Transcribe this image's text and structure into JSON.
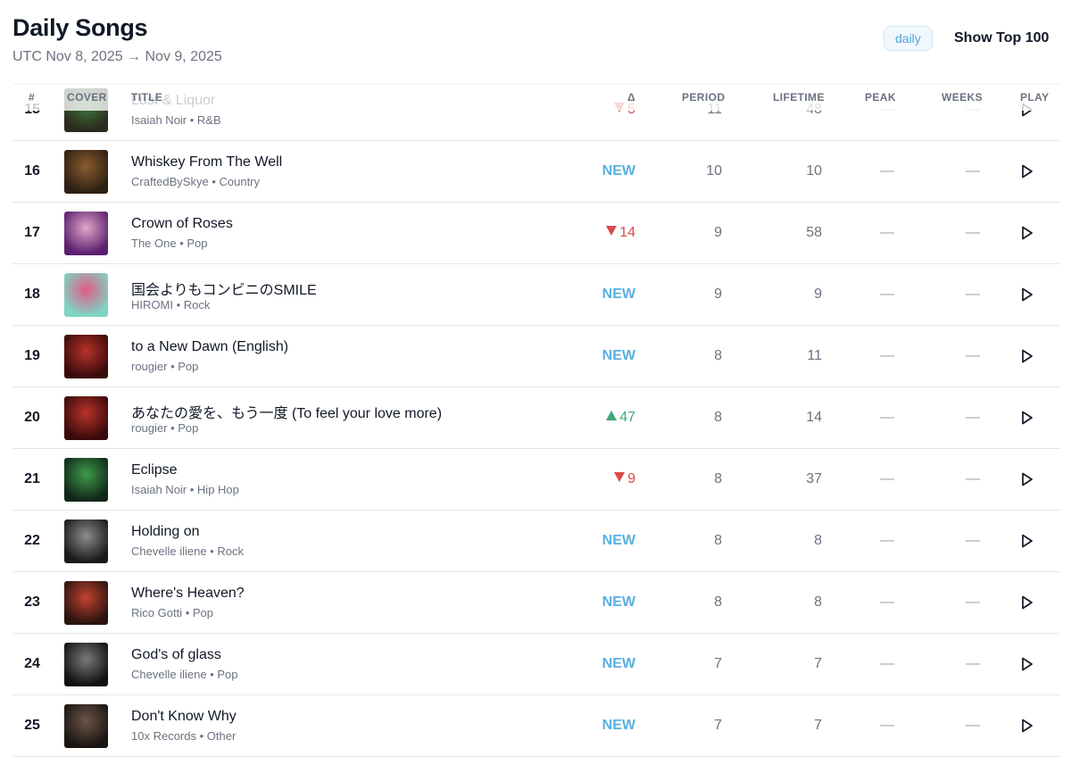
{
  "header": {
    "title": "Daily Songs",
    "date_range": "UTC Nov 8, 2025 → Nov 9, 2025",
    "period_badge": "daily",
    "top100_label": "Show Top 100"
  },
  "columns": {
    "rank": "#",
    "cover": "COVER",
    "title": "TITLE",
    "delta": "Δ",
    "period": "PERIOD",
    "lifetime": "LIFETIME",
    "peak": "PEAK",
    "weeks": "WEEKS",
    "play": "PLAY"
  },
  "icons": {
    "play": "play-icon",
    "up": "triangle-up-icon",
    "down": "triangle-down-icon"
  },
  "colors": {
    "new": "#59b0e0",
    "down": "#d84b4b",
    "up": "#3fa876",
    "badge": "#4fa7d8"
  },
  "rows": [
    {
      "rank": "15",
      "title": "Lust & Liquor",
      "artist": "Isaiah Noir",
      "genre": "R&B",
      "delta_type": "down",
      "delta": "5",
      "period": "11",
      "lifetime": "48",
      "peak": "—",
      "weeks": "—",
      "cover": [
        "#2b2a1f",
        "#3e7a3a"
      ]
    },
    {
      "rank": "16",
      "title": "Whiskey From The Well",
      "artist": "CraftedBySkye",
      "genre": "Country",
      "delta_type": "new",
      "delta": "NEW",
      "period": "10",
      "lifetime": "10",
      "peak": "—",
      "weeks": "—",
      "cover": [
        "#2e2014",
        "#8a5b2e"
      ]
    },
    {
      "rank": "17",
      "title": "Crown of Roses",
      "artist": "The One",
      "genre": "Pop",
      "delta_type": "down",
      "delta": "14",
      "period": "9",
      "lifetime": "58",
      "peak": "—",
      "weeks": "—",
      "cover": [
        "#5b1f6e",
        "#e0a7c8"
      ]
    },
    {
      "rank": "18",
      "title": "国会よりもコンビニのSMILE",
      "artist": "HIROMI",
      "genre": "Rock",
      "delta_type": "new",
      "delta": "NEW",
      "period": "9",
      "lifetime": "9",
      "peak": "—",
      "weeks": "—",
      "cover": [
        "#7fd4c4",
        "#e25a86"
      ]
    },
    {
      "rank": "19",
      "title": "to a New Dawn (English)",
      "artist": "rougier",
      "genre": "Pop",
      "delta_type": "new",
      "delta": "NEW",
      "period": "8",
      "lifetime": "11",
      "peak": "—",
      "weeks": "—",
      "cover": [
        "#3a0b0b",
        "#b8322a"
      ]
    },
    {
      "rank": "20",
      "title": "あなたの愛を、もう一度 (To feel your love more)",
      "artist": "rougier",
      "genre": "Pop",
      "delta_type": "up",
      "delta": "47",
      "period": "8",
      "lifetime": "14",
      "peak": "—",
      "weeks": "—",
      "cover": [
        "#3a0b0b",
        "#b8322a"
      ]
    },
    {
      "rank": "21",
      "title": "Eclipse",
      "artist": "Isaiah Noir",
      "genre": "Hip Hop",
      "delta_type": "down",
      "delta": "9",
      "period": "8",
      "lifetime": "37",
      "peak": "—",
      "weeks": "—",
      "cover": [
        "#10281a",
        "#3f9a4a"
      ]
    },
    {
      "rank": "22",
      "title": "Holding on",
      "artist": "Chevelle iliene",
      "genre": "Rock",
      "delta_type": "new",
      "delta": "NEW",
      "period": "8",
      "lifetime": "8",
      "peak": "—",
      "weeks": "—",
      "cover": [
        "#1a1a1a",
        "#8d8d8d"
      ]
    },
    {
      "rank": "23",
      "title": "Where's Heaven?",
      "artist": "Rico Gotti",
      "genre": "Pop",
      "delta_type": "new",
      "delta": "NEW",
      "period": "8",
      "lifetime": "8",
      "peak": "—",
      "weeks": "—",
      "cover": [
        "#2b1410",
        "#c2432e"
      ]
    },
    {
      "rank": "24",
      "title": "God's of glass",
      "artist": "Chevelle iliene",
      "genre": "Pop",
      "delta_type": "new",
      "delta": "NEW",
      "period": "7",
      "lifetime": "7",
      "peak": "—",
      "weeks": "—",
      "cover": [
        "#121212",
        "#7a7a7a"
      ]
    },
    {
      "rank": "25",
      "title": "Don't Know Why",
      "artist": "10x Records",
      "genre": "Other",
      "delta_type": "new",
      "delta": "NEW",
      "period": "7",
      "lifetime": "7",
      "peak": "—",
      "weeks": "—",
      "cover": [
        "#1b1512",
        "#6b5648"
      ]
    }
  ]
}
